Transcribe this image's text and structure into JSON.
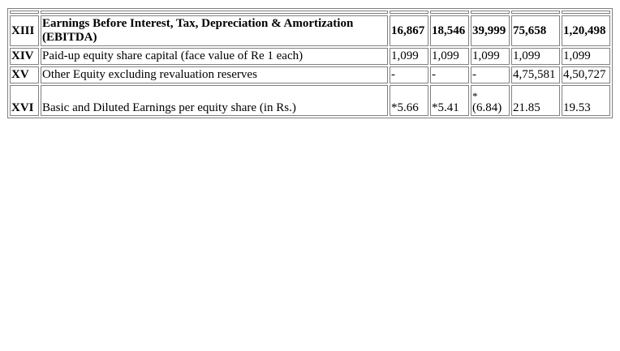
{
  "rows": [
    {
      "num": "XIII",
      "label": "Earnings Before Interest, Tax, Depreciation & Amortization (EBITDA)",
      "bold": true,
      "values": [
        "16,867",
        "18,546",
        "39,999",
        "75,658",
        "1,20,498"
      ]
    },
    {
      "num": "XIV",
      "label": "Paid-up equity share capital (face value of Re 1 each)",
      "bold": false,
      "values": [
        "1,099",
        "1,099",
        "1,099",
        "1,099",
        "1,099"
      ]
    },
    {
      "num": "XV",
      "label": "Other Equity excluding revaluation reserves",
      "bold": false,
      "values": [
        "-",
        "-",
        "-",
        "4,75,581",
        "4,50,727"
      ]
    },
    {
      "num": "XVI",
      "label": "Basic and Diluted Earnings per equity share (in Rs.)",
      "bold": false,
      "values": [
        "*5.66",
        "*5.41",
        "(6.84)",
        "21.85",
        "19.53"
      ],
      "footnote_mark": "*"
    }
  ]
}
